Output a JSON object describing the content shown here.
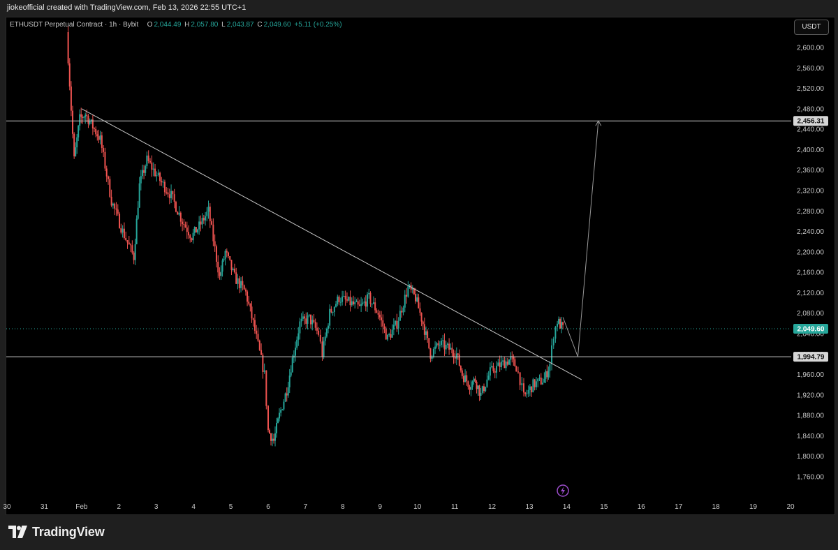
{
  "header": {
    "credit": "jiokeofficial created with TradingView.com, Feb 13, 2026 22:55 UTC+1"
  },
  "legend": {
    "symbol": "ETHUSDT Perpetual Contract · 1h · Bybit",
    "o_label": "O",
    "o_value": "2,044.49",
    "h_label": "H",
    "h_value": "2,057.80",
    "l_label": "L",
    "l_value": "2,043.87",
    "c_label": "C",
    "c_value": "2,049.60",
    "change": "+5.11 (+0.25%)"
  },
  "currency_button": "USDT",
  "brand": {
    "name": "TradingView"
  },
  "colors": {
    "up": "#26a69a",
    "down": "#ef5350",
    "background": "#000000",
    "axis_text": "#c9c9c9",
    "drawing_line": "#c8c8c8"
  },
  "icons": [
    "tradingview-logo-icon",
    "lightning-icon"
  ],
  "chart_data": {
    "type": "candlestick",
    "title": "",
    "symbol": "ETHUSDT",
    "interval": "1h",
    "xlabel": "",
    "ylabel": "",
    "ylim": [
      1730,
      2640
    ],
    "y_ticks": [
      "2,600.00",
      "2,560.00",
      "2,520.00",
      "2,480.00",
      "2,440.00",
      "2,400.00",
      "2,360.00",
      "2,320.00",
      "2,280.00",
      "2,240.00",
      "2,200.00",
      "2,160.00",
      "2,120.00",
      "2,080.00",
      "2,040.00",
      "2,000.00",
      "1,960.00",
      "1,920.00",
      "1,880.00",
      "1,840.00",
      "1,800.00",
      "1,760.00"
    ],
    "x_ticks": [
      "30",
      "31",
      "Feb",
      "2",
      "3",
      "4",
      "5",
      "6",
      "7",
      "8",
      "9",
      "10",
      "11",
      "12",
      "13",
      "14",
      "15",
      "16",
      "17",
      "18",
      "19",
      "20"
    ],
    "x_range": [
      30.0,
      51.0
    ],
    "price_path": [
      [
        31.6,
        2630
      ],
      [
        31.8,
        2380
      ],
      [
        31.95,
        2460
      ],
      [
        32.1,
        2470
      ],
      [
        32.5,
        2420
      ],
      [
        32.8,
        2300
      ],
      [
        33.1,
        2240
      ],
      [
        33.4,
        2190
      ],
      [
        33.55,
        2330
      ],
      [
        33.75,
        2380
      ],
      [
        34.1,
        2340
      ],
      [
        34.4,
        2310
      ],
      [
        34.7,
        2260
      ],
      [
        34.95,
        2230
      ],
      [
        35.15,
        2250
      ],
      [
        35.4,
        2280
      ],
      [
        35.7,
        2150
      ],
      [
        35.85,
        2200
      ],
      [
        36.1,
        2150
      ],
      [
        36.4,
        2120
      ],
      [
        36.6,
        2060
      ],
      [
        36.9,
        1960
      ],
      [
        37.0,
        1850
      ],
      [
        37.15,
        1830
      ],
      [
        37.3,
        1880
      ],
      [
        37.5,
        1930
      ],
      [
        37.65,
        1990
      ],
      [
        37.85,
        2060
      ],
      [
        38.1,
        2070
      ],
      [
        38.35,
        2040
      ],
      [
        38.45,
        2000
      ],
      [
        38.65,
        2080
      ],
      [
        38.9,
        2110
      ],
      [
        39.2,
        2100
      ],
      [
        39.45,
        2090
      ],
      [
        39.7,
        2110
      ],
      [
        39.95,
        2080
      ],
      [
        40.2,
        2030
      ],
      [
        40.45,
        2060
      ],
      [
        40.75,
        2130
      ],
      [
        40.95,
        2110
      ],
      [
        41.15,
        2060
      ],
      [
        41.35,
        2000
      ],
      [
        41.6,
        2020
      ],
      [
        41.85,
        2010
      ],
      [
        42.05,
        2000
      ],
      [
        42.2,
        1960
      ],
      [
        42.4,
        1940
      ],
      [
        42.55,
        1950
      ],
      [
        42.7,
        1920
      ],
      [
        42.95,
        1965
      ],
      [
        43.25,
        1980
      ],
      [
        43.5,
        1990
      ],
      [
        43.65,
        1975
      ],
      [
        43.75,
        1950
      ],
      [
        43.85,
        1915
      ],
      [
        44.1,
        1940
      ],
      [
        44.4,
        1950
      ],
      [
        44.55,
        1980
      ],
      [
        44.65,
        2040
      ],
      [
        44.75,
        2065
      ],
      [
        44.9,
        2049.6
      ]
    ],
    "annotations": {
      "horizontal_lines": [
        {
          "label": "2,456.31",
          "value": 2456.31
        },
        {
          "label": "1,994.79",
          "value": 1994.79
        }
      ],
      "last_price": {
        "label": "2,049.60",
        "value": 2049.6
      },
      "trendline": {
        "from": [
          32.0,
          2480
        ],
        "to": [
          45.4,
          1950
        ]
      },
      "projection": [
        [
          44.9,
          2072
        ],
        [
          45.3,
          1994.79
        ],
        [
          45.85,
          2456.31
        ]
      ]
    },
    "grid": false,
    "legend": "top-left"
  }
}
